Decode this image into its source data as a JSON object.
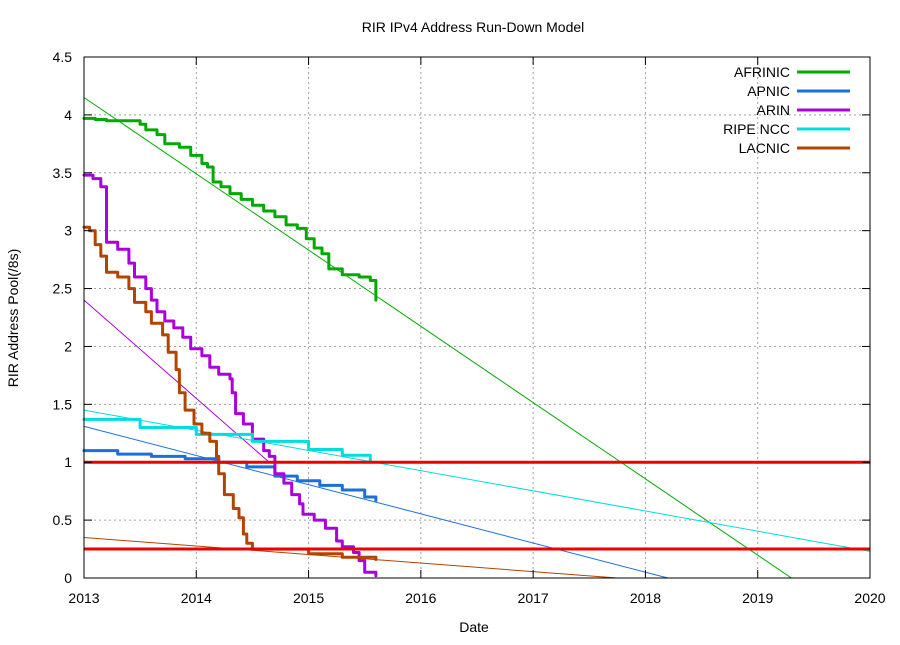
{
  "chart_data": {
    "type": "line",
    "title": "RIR IPv4 Address Run-Down Model",
    "xlabel": "Date",
    "ylabel": "RIR Address Pool(/8s)",
    "xlim": [
      2013,
      2020
    ],
    "ylim": [
      0,
      4.5
    ],
    "x_ticks": [
      2013,
      2014,
      2015,
      2016,
      2017,
      2018,
      2019,
      2020
    ],
    "x_tick_labels": [
      "2013",
      "2014",
      "2015",
      "2016",
      "2017",
      "2018",
      "2019",
      "2020"
    ],
    "y_ticks": [
      0,
      0.5,
      1,
      1.5,
      2,
      2.5,
      3,
      3.5,
      4,
      4.5
    ],
    "y_tick_labels": [
      "0",
      "0.5",
      "1",
      "1.5",
      "2",
      "2.5",
      "3",
      "3.5",
      "4",
      "4.5"
    ],
    "grid": true,
    "legend_position": "top-right",
    "series": [
      {
        "name": "AFRINIC",
        "color": "#00aa00",
        "values": [
          [
            2013.0,
            3.97
          ],
          [
            2013.1,
            3.96
          ],
          [
            2013.2,
            3.95
          ],
          [
            2013.35,
            3.95
          ],
          [
            2013.5,
            3.92
          ],
          [
            2013.55,
            3.87
          ],
          [
            2013.65,
            3.83
          ],
          [
            2013.72,
            3.75
          ],
          [
            2013.85,
            3.72
          ],
          [
            2013.95,
            3.65
          ],
          [
            2014.05,
            3.58
          ],
          [
            2014.1,
            3.55
          ],
          [
            2014.15,
            3.42
          ],
          [
            2014.22,
            3.38
          ],
          [
            2014.3,
            3.32
          ],
          [
            2014.4,
            3.27
          ],
          [
            2014.5,
            3.22
          ],
          [
            2014.6,
            3.17
          ],
          [
            2014.7,
            3.12
          ],
          [
            2014.8,
            3.05
          ],
          [
            2014.9,
            3.02
          ],
          [
            2014.98,
            2.93
          ],
          [
            2015.05,
            2.85
          ],
          [
            2015.12,
            2.8
          ],
          [
            2015.18,
            2.67
          ],
          [
            2015.3,
            2.62
          ],
          [
            2015.45,
            2.6
          ],
          [
            2015.55,
            2.57
          ],
          [
            2015.6,
            2.5
          ],
          [
            2015.6,
            2.4
          ]
        ]
      },
      {
        "name": "APNIC",
        "color": "#1a6fdb",
        "values": [
          [
            2013.0,
            1.1
          ],
          [
            2013.3,
            1.07
          ],
          [
            2013.6,
            1.05
          ],
          [
            2013.9,
            1.03
          ],
          [
            2014.2,
            1.0
          ],
          [
            2014.45,
            0.96
          ],
          [
            2014.7,
            0.88
          ],
          [
            2014.9,
            0.84
          ],
          [
            2015.1,
            0.8
          ],
          [
            2015.3,
            0.76
          ],
          [
            2015.5,
            0.7
          ],
          [
            2015.6,
            0.67
          ]
        ]
      },
      {
        "name": "ARIN",
        "color": "#aa00dd",
        "values": [
          [
            2013.0,
            3.48
          ],
          [
            2013.08,
            3.45
          ],
          [
            2013.15,
            3.38
          ],
          [
            2013.2,
            3.3
          ],
          [
            2013.2,
            2.9
          ],
          [
            2013.3,
            2.84
          ],
          [
            2013.4,
            2.72
          ],
          [
            2013.45,
            2.6
          ],
          [
            2013.55,
            2.5
          ],
          [
            2013.6,
            2.4
          ],
          [
            2013.65,
            2.3
          ],
          [
            2013.72,
            2.22
          ],
          [
            2013.8,
            2.16
          ],
          [
            2013.88,
            2.08
          ],
          [
            2013.95,
            1.98
          ],
          [
            2014.05,
            1.92
          ],
          [
            2014.12,
            1.82
          ],
          [
            2014.2,
            1.76
          ],
          [
            2014.3,
            1.72
          ],
          [
            2014.32,
            1.6
          ],
          [
            2014.35,
            1.42
          ],
          [
            2014.42,
            1.33
          ],
          [
            2014.5,
            1.2
          ],
          [
            2014.6,
            1.1
          ],
          [
            2014.65,
            1.05
          ],
          [
            2014.7,
            0.9
          ],
          [
            2014.78,
            0.82
          ],
          [
            2014.85,
            0.72
          ],
          [
            2014.92,
            0.64
          ],
          [
            2014.95,
            0.55
          ],
          [
            2015.05,
            0.5
          ],
          [
            2015.15,
            0.43
          ],
          [
            2015.25,
            0.32
          ],
          [
            2015.3,
            0.27
          ],
          [
            2015.4,
            0.22
          ],
          [
            2015.45,
            0.15
          ],
          [
            2015.5,
            0.1
          ],
          [
            2015.5,
            0.05
          ],
          [
            2015.6,
            0.02
          ]
        ]
      },
      {
        "name": "RIPE NCC",
        "color": "#00dddd",
        "values": [
          [
            2013.0,
            1.37
          ],
          [
            2013.5,
            1.3
          ],
          [
            2014.0,
            1.24
          ],
          [
            2014.5,
            1.18
          ],
          [
            2015.0,
            1.11
          ],
          [
            2015.3,
            1.06
          ],
          [
            2015.55,
            1.0
          ]
        ]
      },
      {
        "name": "LACNIC",
        "color": "#b34400",
        "values": [
          [
            2013.0,
            3.03
          ],
          [
            2013.05,
            3.0
          ],
          [
            2013.1,
            2.88
          ],
          [
            2013.15,
            2.78
          ],
          [
            2013.2,
            2.64
          ],
          [
            2013.3,
            2.6
          ],
          [
            2013.4,
            2.5
          ],
          [
            2013.45,
            2.38
          ],
          [
            2013.55,
            2.3
          ],
          [
            2013.6,
            2.2
          ],
          [
            2013.7,
            2.1
          ],
          [
            2013.75,
            1.95
          ],
          [
            2013.82,
            1.8
          ],
          [
            2013.85,
            1.6
          ],
          [
            2013.9,
            1.45
          ],
          [
            2013.98,
            1.33
          ],
          [
            2014.05,
            1.25
          ],
          [
            2014.12,
            1.18
          ],
          [
            2014.18,
            1.05
          ],
          [
            2014.2,
            0.9
          ],
          [
            2014.25,
            0.72
          ],
          [
            2014.33,
            0.6
          ],
          [
            2014.38,
            0.52
          ],
          [
            2014.42,
            0.38
          ],
          [
            2014.45,
            0.3
          ],
          [
            2014.5,
            0.25
          ],
          [
            2015.0,
            0.21
          ],
          [
            2015.3,
            0.18
          ],
          [
            2015.6,
            0.16
          ]
        ]
      }
    ],
    "trend_lines": [
      {
        "series": "AFRINIC",
        "color": "#00aa00",
        "from": [
          2013.0,
          4.15
        ],
        "to": [
          2019.3,
          0.0
        ]
      },
      {
        "series": "APNIC",
        "color": "#1a6fdb",
        "from": [
          2013.0,
          1.31
        ],
        "to": [
          2018.2,
          0.0
        ]
      },
      {
        "series": "ARIN",
        "color": "#aa00dd",
        "from": [
          2013.0,
          2.4
        ],
        "to": [
          2014.65,
          1.0
        ]
      },
      {
        "series": "RIPE NCC",
        "color": "#00dddd",
        "from": [
          2013.0,
          1.45
        ],
        "to": [
          2020.0,
          0.23
        ]
      },
      {
        "series": "LACNIC",
        "color": "#b34400",
        "from": [
          2013.0,
          0.35
        ],
        "to": [
          2017.75,
          0.0
        ]
      }
    ],
    "threshold_lines": [
      {
        "y": 1.0,
        "color": "#ee0000"
      },
      {
        "y": 0.25,
        "color": "#ee0000"
      }
    ]
  }
}
